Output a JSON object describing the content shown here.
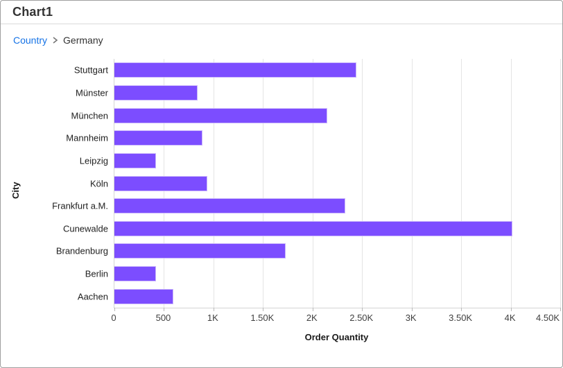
{
  "header": {
    "title": "Chart1"
  },
  "breadcrumb": {
    "items": [
      {
        "label": "Country",
        "type": "link"
      },
      {
        "label": "Germany",
        "type": "current"
      }
    ],
    "separator_icon": "chevron-right-icon"
  },
  "colors": {
    "bar": "#7C4DFF",
    "bar_border": "#C9B5FB",
    "gridline": "#E4E4E4",
    "axis_line": "#D4D4D4",
    "link": "#1673E6",
    "title_text": "#333333",
    "tick_text": "#404040"
  },
  "chart_data": {
    "type": "bar",
    "orientation": "horizontal",
    "title": "Chart1",
    "categories": [
      "Stuttgart",
      "Münster",
      "München",
      "Mannheim",
      "Leipzig",
      "Köln",
      "Frankfurt a.M.",
      "Cunewalde",
      "Brandenburg",
      "Berlin",
      "Aachen"
    ],
    "values": [
      2445,
      840,
      2150,
      890,
      420,
      935,
      2330,
      4020,
      1730,
      420,
      595
    ],
    "xlabel": "Order Quantity",
    "ylabel": "City",
    "xlim": [
      0,
      4500
    ],
    "xticks": [
      0,
      500,
      1000,
      1500,
      2000,
      2500,
      3000,
      3500,
      4000,
      4500
    ],
    "xtick_labels": [
      "0",
      "500",
      "1K",
      "1.50K",
      "2K",
      "2.50K",
      "3K",
      "3.50K",
      "4K",
      "4.50K"
    ],
    "grid": "vertical-only",
    "legend": "none"
  }
}
